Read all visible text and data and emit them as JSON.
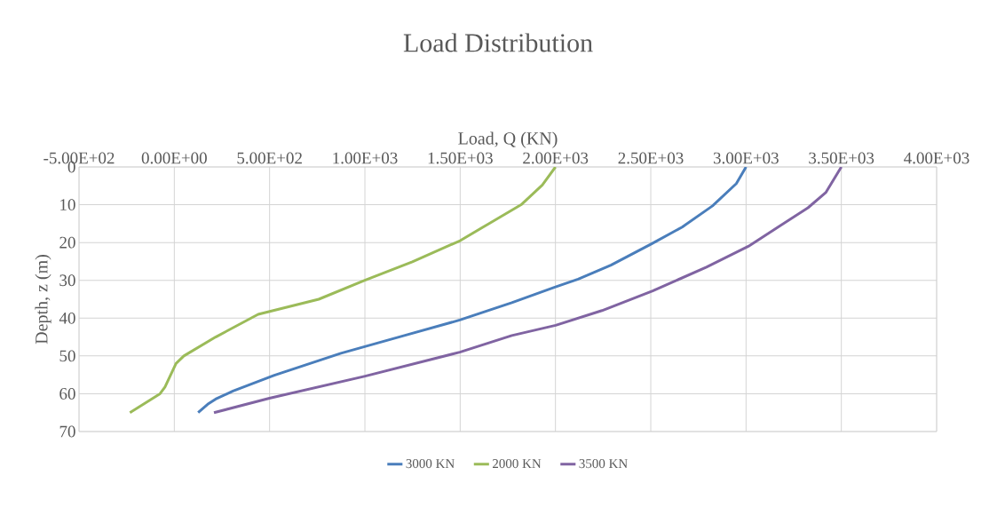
{
  "chart_data": {
    "type": "line",
    "title": "Load Distribution",
    "xlabel": "Load, Q (KN)",
    "ylabel": "Depth, z (m)",
    "xlim": [
      -500,
      4000
    ],
    "ylim": [
      70,
      0
    ],
    "xticks": [
      {
        "value": -500,
        "label": "-5.00E+02"
      },
      {
        "value": 0,
        "label": "0.00E+00"
      },
      {
        "value": 500,
        "label": "5.00E+02"
      },
      {
        "value": 1000,
        "label": "1.00E+03"
      },
      {
        "value": 1500,
        "label": "1.50E+03"
      },
      {
        "value": 2000,
        "label": "2.00E+03"
      },
      {
        "value": 2500,
        "label": "2.50E+03"
      },
      {
        "value": 3000,
        "label": "3.00E+03"
      },
      {
        "value": 3500,
        "label": "3.50E+03"
      },
      {
        "value": 4000,
        "label": "4.00E+03"
      }
    ],
    "yticks": [
      0,
      10,
      20,
      30,
      40,
      50,
      60,
      70
    ],
    "grid": true,
    "legend": "bottom",
    "marker": "none",
    "line_style": "solid",
    "series": [
      {
        "name": "3000 KN",
        "color": "#4a7ebb",
        "x": [
          3000,
          2949,
          2824,
          2665,
          2502,
          2291,
          2119,
          1997,
          1771,
          1498,
          1207,
          874,
          525,
          308,
          217,
          175,
          125
        ],
        "values": [
          0,
          4.4,
          10.3,
          15.9,
          20.4,
          26,
          29.7,
          31.8,
          35.9,
          40.5,
          44.6,
          49.3,
          55.1,
          59.3,
          61.4,
          62.8,
          65
        ]
      },
      {
        "name": "2000 KN",
        "color": "#9bbb59",
        "x": [
          2000,
          1931,
          1820,
          1654,
          1500,
          1249,
          1000,
          758,
          440,
          217,
          50,
          9,
          -49,
          -75,
          -233
        ],
        "values": [
          0,
          4.8,
          10,
          14.9,
          19.5,
          25.1,
          30,
          35,
          39,
          45,
          50,
          52,
          58.2,
          60,
          65
        ]
      },
      {
        "name": "3500 KN",
        "color": "#8064a2",
        "x": [
          3500,
          3418,
          3325,
          3168,
          3012,
          2792,
          2510,
          2244,
          2001,
          1771,
          1498,
          997,
          499,
          208
        ],
        "values": [
          0,
          6.8,
          10.8,
          15.9,
          21,
          26.5,
          32.8,
          38,
          41.9,
          44.6,
          49,
          55.4,
          61.2,
          65
        ]
      }
    ]
  }
}
